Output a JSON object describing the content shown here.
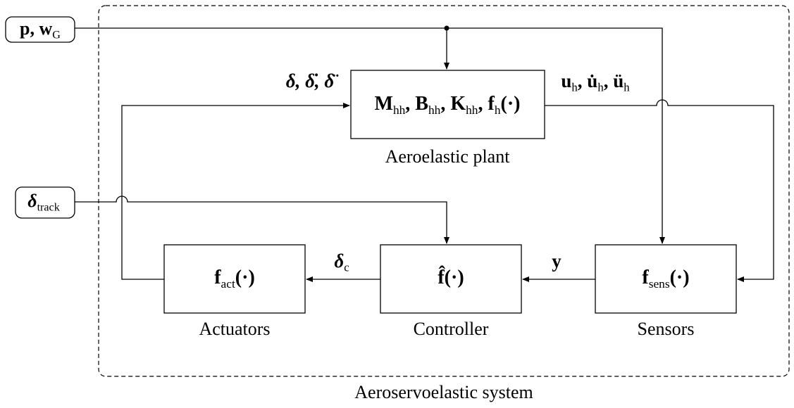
{
  "inputs": [
    {
      "parts": [
        "p, w",
        "G"
      ]
    },
    {
      "parts": [
        "δ",
        "track"
      ]
    }
  ],
  "blocks": [
    {
      "parts": [
        "M",
        "hh",
        ", B",
        "hh",
        ", K",
        "hh",
        ", f",
        "h",
        "(·)"
      ],
      "caption": "Aeroelastic plant"
    },
    {
      "parts": [
        "f",
        "act",
        "(·)"
      ],
      "caption": "Actuators"
    },
    {
      "parts": [
        "f̂(·)"
      ],
      "caption": "Controller"
    },
    {
      "parts": [
        "f",
        "sens",
        "(·)"
      ],
      "caption": "Sensors"
    }
  ],
  "signals": [
    {
      "parts": [
        "δ, δ̇, δ̈"
      ]
    },
    {
      "parts": [
        "u",
        "h",
        ", u̇",
        "h",
        ", ü",
        "h"
      ]
    },
    {
      "parts": [
        "y"
      ]
    },
    {
      "parts": [
        "δ",
        "c"
      ]
    }
  ],
  "system_label": "Aeroservoelastic system"
}
